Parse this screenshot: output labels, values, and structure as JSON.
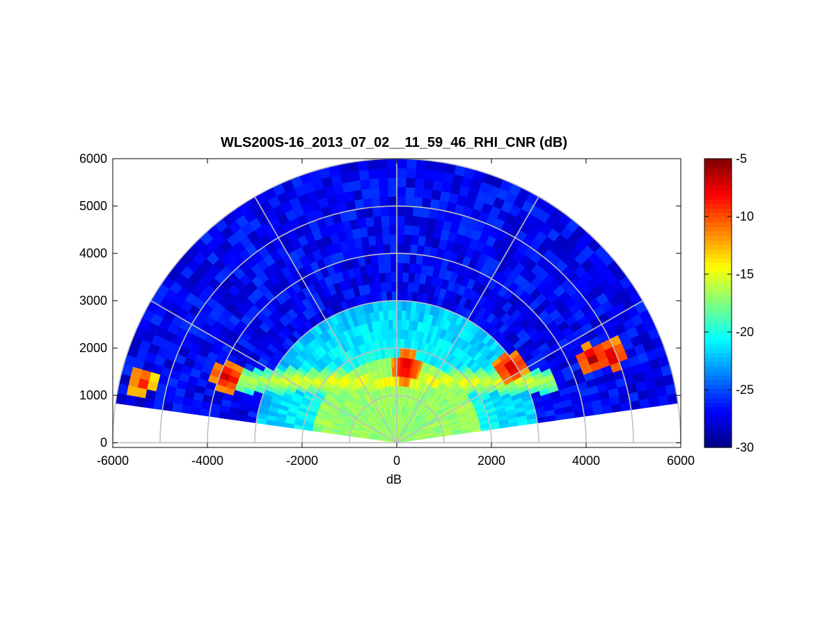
{
  "figure": {
    "background": "#ffffff"
  },
  "chart_data": {
    "type": "heatmap",
    "subtype": "polar-rhi-scan",
    "title": "WLS200S-16_2013_07_02__11_59_46_RHI_CNR (dB)",
    "xlabel": "dB",
    "ylabel": "",
    "xlim": [
      -6000,
      6000
    ],
    "ylim": [
      -100,
      6000
    ],
    "xticks": [
      -6000,
      -4000,
      -2000,
      0,
      2000,
      4000,
      6000
    ],
    "yticks": [
      0,
      1000,
      2000,
      3000,
      4000,
      5000,
      6000
    ],
    "polar_grid": {
      "ring_ranges": [
        1000,
        2000,
        3000,
        4000,
        5000,
        6000
      ],
      "spoke_angles_deg": [
        0,
        30,
        60,
        90,
        120,
        150,
        180
      ],
      "grid_color": "#c0c0c0"
    },
    "scan": {
      "range_max": 6000,
      "elevation_min_deg": 8,
      "elevation_max_deg": 172,
      "elevation_step_deg": 2,
      "range_gate": 200
    },
    "cnr_field": {
      "units": "dB",
      "near_field_value": -16,
      "near_field_extent": 1000,
      "aerosol_layer": {
        "height_center": 1300,
        "height_halfwidth": 250,
        "peak_value": -13
      },
      "clean_air_value": -27,
      "hotspots": [
        {
          "x": 4150,
          "y": 1780,
          "value": -6
        },
        {
          "x": 4550,
          "y": 1850,
          "value": -6
        },
        {
          "x": -5400,
          "y": 1300,
          "value": -8
        },
        {
          "x": -3600,
          "y": 1400,
          "value": -6
        },
        {
          "x": 200,
          "y": 1600,
          "value": -6
        },
        {
          "x": 2400,
          "y": 1600,
          "value": -6
        }
      ]
    },
    "colorbar": {
      "colormap": "jet",
      "clim": [
        -30,
        -5
      ],
      "ticks": [
        -5,
        -10,
        -15,
        -20,
        -25,
        -30
      ]
    }
  }
}
